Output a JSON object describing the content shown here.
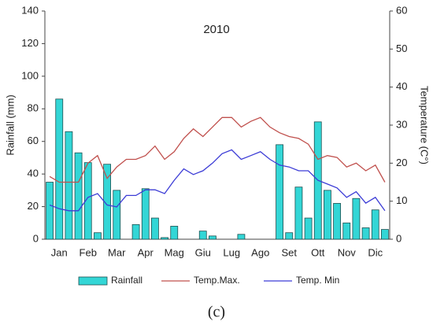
{
  "chart_data": {
    "type": "bar_line",
    "title": "2010",
    "y_label": "Rainfall (mm)",
    "y2_label": "Temperature (C°)",
    "caption": "(c)",
    "categories": [
      null,
      "Jan",
      null,
      null,
      "Feb",
      null,
      null,
      "Mar",
      null,
      null,
      "Apr",
      null,
      null,
      "Mag",
      null,
      null,
      "Giu",
      null,
      null,
      "Lug",
      null,
      null,
      "Ago",
      null,
      null,
      "Set",
      null,
      null,
      "Ott",
      null,
      null,
      "Nov",
      null,
      null,
      "Dic",
      null
    ],
    "series": [
      {
        "name": "Rainfall",
        "color": "#33d6d6",
        "values": [
          35,
          86,
          66,
          53,
          47,
          4,
          46,
          30,
          0,
          9,
          31,
          13,
          1,
          8,
          0,
          0,
          5,
          2,
          0,
          0,
          3,
          0,
          0,
          0,
          58,
          4,
          32,
          13,
          72,
          30,
          22,
          10,
          25,
          7,
          18,
          6
        ]
      },
      {
        "name": "Temp.Max.",
        "color": "#c0504d",
        "axis": "y2",
        "values": [
          16.5,
          15,
          15,
          15,
          20,
          22,
          16,
          19,
          21,
          21,
          22,
          24.5,
          21,
          23,
          26.5,
          29,
          27,
          29.5,
          32,
          32,
          29.5,
          31,
          32,
          29.5,
          28,
          27,
          26.5,
          25,
          21,
          22,
          21.5,
          19,
          20,
          18,
          19.5,
          15
        ]
      },
      {
        "name": "Temp. Min",
        "color": "#3c3cd6",
        "axis": "y2",
        "values": [
          9,
          8,
          7.5,
          7.5,
          11,
          12,
          9,
          8.5,
          11.5,
          11.5,
          13,
          13,
          12,
          15.5,
          18.5,
          17,
          18,
          20,
          22.5,
          23.5,
          21,
          22,
          23,
          21,
          19.5,
          19,
          18,
          18,
          15.5,
          14.5,
          13.5,
          11,
          12.5,
          9.5,
          11,
          7.5
        ]
      }
    ],
    "ylim": [
      0,
      140
    ],
    "yticks": [
      0,
      20,
      40,
      60,
      80,
      100,
      120,
      140
    ],
    "y2lim": [
      0,
      60
    ],
    "y2ticks": [
      0,
      10,
      20,
      30,
      40,
      50,
      60
    ],
    "grid": false
  }
}
